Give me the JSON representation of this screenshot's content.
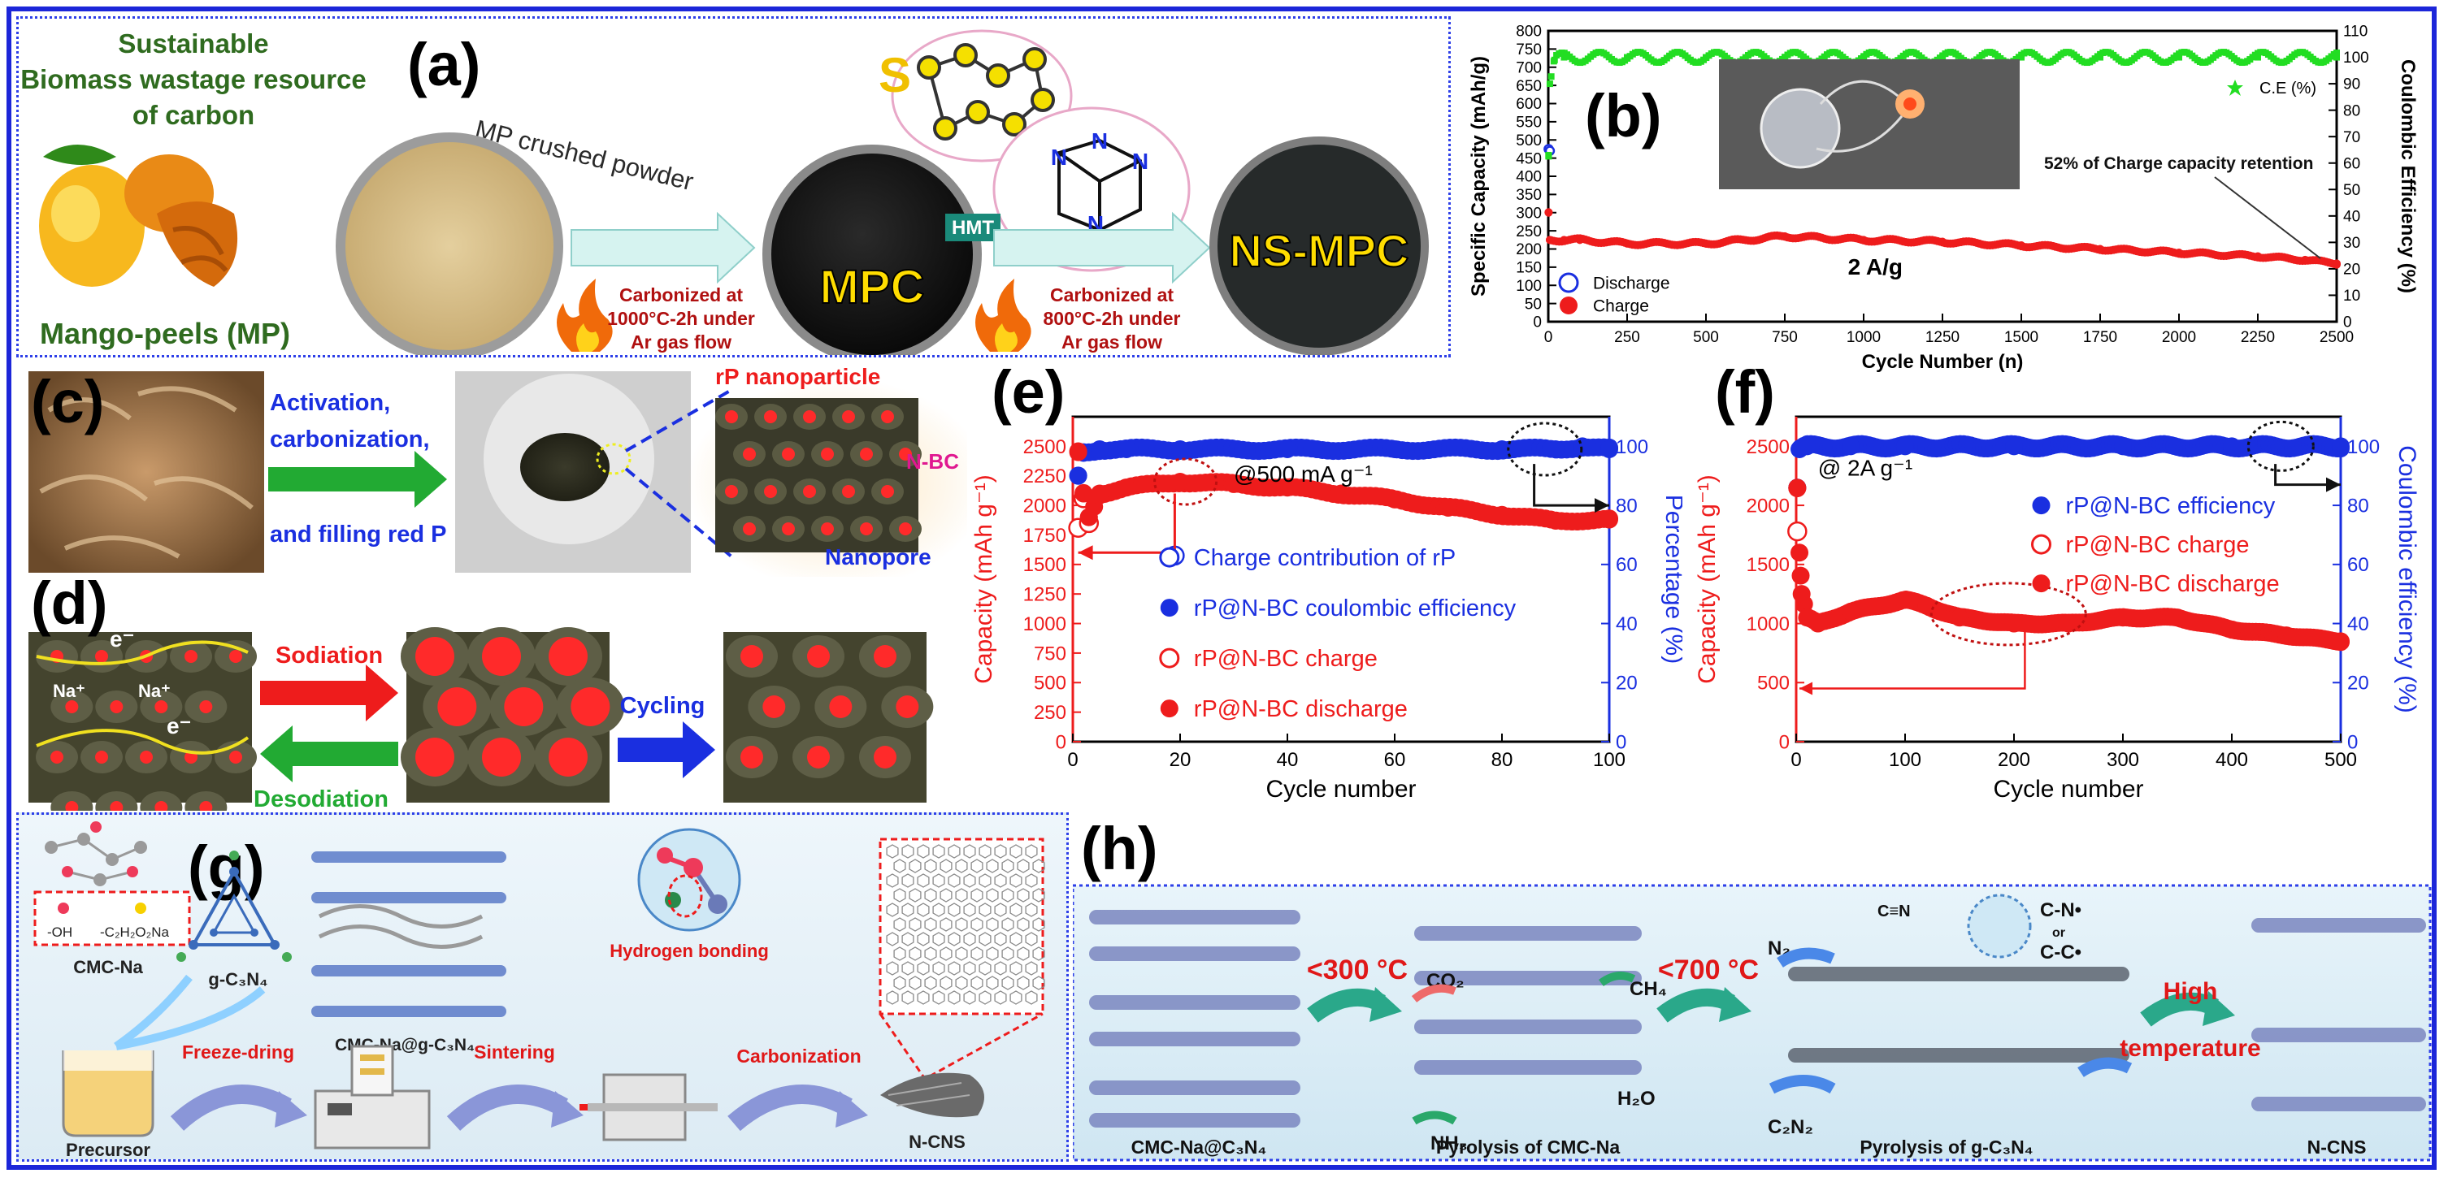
{
  "panel_a": {
    "label": "(a)",
    "title_lines": [
      "Sustainable",
      "Biomass wastage resource",
      "of carbon"
    ],
    "mango_label": "Mango-peels (MP)",
    "powder_label": "MP crushed powder",
    "step1_lines": [
      "Carbonized at",
      "1000°C-2h under",
      "Ar gas flow"
    ],
    "mpc_label": "MPC",
    "s_label": "S",
    "hmt_label": "HMT",
    "n_label": "N",
    "step2_lines": [
      "Carbonized at",
      "800°C-2h under",
      "Ar gas flow"
    ],
    "nsmpc_label": "NS-MPC"
  },
  "panel_c": {
    "label": "(c)",
    "arrow_lines": [
      "Activation,",
      "carbonization,",
      "and filling red P"
    ],
    "rp_label": "rP nanoparticle",
    "nbc_label": "N-BC",
    "nanopore_label": "Nanopore"
  },
  "panel_d": {
    "label": "(d)",
    "electron": "e⁻",
    "na_ion": "Na⁺",
    "sodiation": "Sodiation",
    "desodiation": "Desodiation",
    "cycling": "Cycling"
  },
  "panel_g": {
    "label": "(g)",
    "cmc_label": "CMC-Na",
    "oh_label": "-OH",
    "ch2cooNa_label": "-C₂H₂O₂Na",
    "gcn_label": "g-C₃N₄",
    "composite_label": "CMC-Na@g-C₃N₄",
    "hbond_label": "Hydrogen bonding",
    "precursor": "Precursor",
    "freeze": "Freeze-dring",
    "sintering": "Sintering",
    "carbonization": "Carbonization",
    "ncns": "N-CNS"
  },
  "panel_h": {
    "label": "(h)",
    "t1": "<300 °C",
    "t2": "<700 °C",
    "t3_lines": [
      "High",
      "temperature"
    ],
    "co2": "CO₂",
    "ch4": "CH₄",
    "nh3": "NH₃",
    "h2o": "H₂O",
    "n2": "N₂",
    "c2n2": "C₂N₂",
    "cn_triple": "C≡N",
    "cn_dot": "C-N•",
    "or": "or",
    "cc_dot": "C-C•",
    "l1": "CMC-Na@C₃N₄",
    "l2": "Pyrolysis of CMC-Na",
    "l3": "Pyrolysis of g-C₃N₄",
    "l4": "N-CNS"
  },
  "colors": {
    "frame": "#1c26d9",
    "red": "#ee1c1c",
    "blue": "#1a2fe0",
    "green": "#22dd22",
    "darkred": "#c01010"
  },
  "chart_data": [
    {
      "id": "b",
      "type": "scatter",
      "label": "(b)",
      "xlabel": "Cycle Number (n)",
      "ylabel": "Specific Capacity (mAh/g)",
      "y2label": "Coulombic Efficiency (%)",
      "xlim": [
        0,
        2500
      ],
      "ylim": [
        0,
        800
      ],
      "y2lim": [
        0,
        110
      ],
      "xticks": [
        0,
        250,
        500,
        750,
        1000,
        1250,
        1500,
        1750,
        2000,
        2250,
        2500
      ],
      "yticks": [
        0,
        50,
        100,
        150,
        200,
        250,
        300,
        350,
        400,
        450,
        500,
        550,
        600,
        650,
        700,
        750,
        800
      ],
      "y2ticks": [
        0,
        10,
        20,
        30,
        40,
        50,
        60,
        70,
        80,
        90,
        100,
        110
      ],
      "annotation": "2 A/g",
      "retention_note": "52% of Charge capacity retention",
      "legend_position": "lower-left",
      "series": [
        {
          "name": "Discharge",
          "marker": "open-blue",
          "axis": "left",
          "x": [
            1,
            5
          ],
          "values": [
            475,
            470
          ]
        },
        {
          "name": "Charge",
          "marker": "red",
          "axis": "left",
          "x": [
            1,
            5,
            50,
            100,
            250,
            500,
            750,
            1000,
            1250,
            1500,
            1750,
            2000,
            2250,
            2400,
            2500
          ],
          "values": [
            300,
            225,
            225,
            225,
            215,
            215,
            235,
            225,
            220,
            210,
            200,
            190,
            180,
            170,
            160
          ]
        },
        {
          "name": "C.E (%)",
          "marker": "green-star",
          "axis": "right",
          "x": [
            1,
            5,
            20,
            50,
            250,
            500,
            750,
            1000,
            1250,
            1500,
            1750,
            2000,
            2250,
            2500
          ],
          "values": [
            63,
            90,
            99,
            100,
            100,
            100,
            100,
            100,
            100,
            100,
            100,
            100,
            100,
            100
          ]
        }
      ]
    },
    {
      "id": "e",
      "type": "scatter",
      "label": "(e)",
      "xlabel": "Cycle number",
      "ylabel": "Capacity (mAh g⁻¹)",
      "y2label": "Percentage (%)",
      "xlim": [
        0,
        100
      ],
      "ylim": [
        0,
        2750
      ],
      "y2lim": [
        0,
        110
      ],
      "xticks": [
        0,
        20,
        40,
        60,
        80,
        100
      ],
      "yticks": [
        0,
        250,
        500,
        750,
        1000,
        1250,
        1500,
        1750,
        2000,
        2250,
        2500
      ],
      "y2ticks": [
        0,
        20,
        40,
        60,
        80,
        100
      ],
      "annotation": "@500 mA g⁻¹",
      "legend_position": "lower-center",
      "series": [
        {
          "name": "Charge contribution of rP",
          "marker": "open-blue",
          "axis": "right",
          "x": [
            19
          ],
          "values": [
            63
          ]
        },
        {
          "name": "rP@N-BC coulombic efficiency",
          "marker": "blue",
          "axis": "right",
          "x": [
            1,
            2,
            5,
            10,
            20,
            40,
            60,
            80,
            90,
            95,
            100
          ],
          "values": [
            90,
            98,
            99,
            99,
            99,
            99,
            99,
            99,
            99,
            100,
            99
          ]
        },
        {
          "name": "rP@N-BC charge",
          "marker": "open-red",
          "axis": "left",
          "x": [
            1,
            2,
            3
          ],
          "values": [
            1810,
            2060,
            1850
          ]
        },
        {
          "name": "rP@N-BC discharge",
          "marker": "red",
          "axis": "left",
          "x": [
            1,
            2,
            3,
            5,
            10,
            20,
            30,
            40,
            50,
            60,
            70,
            80,
            90,
            100
          ],
          "values": [
            2450,
            2100,
            1900,
            2100,
            2150,
            2200,
            2180,
            2150,
            2100,
            2050,
            1980,
            1920,
            1870,
            1880
          ]
        }
      ]
    },
    {
      "id": "f",
      "type": "scatter",
      "label": "(f)",
      "xlabel": "Cycle number",
      "ylabel": "Capacity (mAh g⁻¹)",
      "y2label": "Coulombic efficiency (%)",
      "xlim": [
        0,
        500
      ],
      "ylim": [
        0,
        2750
      ],
      "y2lim": [
        0,
        110
      ],
      "xticks": [
        0,
        100,
        200,
        300,
        400,
        500
      ],
      "yticks": [
        0,
        500,
        1000,
        1500,
        2000,
        2500
      ],
      "y2ticks": [
        0,
        20,
        40,
        60,
        80,
        100
      ],
      "annotation": "@ 2A g⁻¹",
      "legend_position": "center-right",
      "series": [
        {
          "name": "rP@N-BC efficiency",
          "marker": "blue",
          "axis": "right",
          "x": [
            1,
            3,
            10,
            50,
            100,
            200,
            300,
            400,
            500
          ],
          "values": [
            86,
            99,
            100,
            100,
            100,
            100,
            100,
            100,
            100
          ]
        },
        {
          "name": "rP@N-BC charge",
          "marker": "open-red",
          "axis": "left",
          "x": [
            1
          ],
          "values": [
            1780
          ]
        },
        {
          "name": "rP@N-BC discharge",
          "marker": "red",
          "axis": "left",
          "x": [
            1,
            3,
            5,
            10,
            20,
            50,
            100,
            120,
            150,
            200,
            250,
            300,
            350,
            400,
            450,
            500
          ],
          "values": [
            2150,
            1600,
            1250,
            1050,
            1000,
            1100,
            1200,
            1150,
            1050,
            1000,
            1000,
            1050,
            1050,
            950,
            900,
            850
          ]
        }
      ]
    }
  ]
}
